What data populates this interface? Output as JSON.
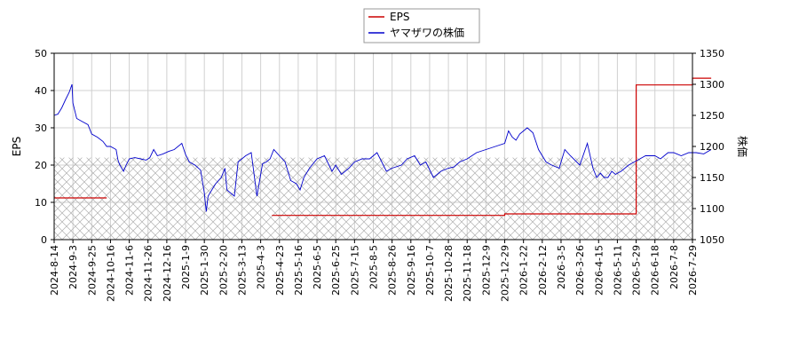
{
  "chart_data": {
    "type": "line",
    "legend": {
      "placement": "top-center",
      "entries": [
        "EPS",
        "ヤマザワの株価"
      ]
    },
    "grid": true,
    "left_axis": {
      "label": "EPS",
      "ylim": [
        0,
        50
      ],
      "ticks": [
        "0",
        "10",
        "20",
        "30",
        "40",
        "50"
      ]
    },
    "right_axis": {
      "label": "株価",
      "ylim": [
        1050,
        1350
      ],
      "ticks": [
        "1050",
        "1100",
        "1150",
        "1200",
        "1250",
        "1300",
        "1350"
      ]
    },
    "x_ticks": [
      "2024-8-14",
      "2024-9-3",
      "2024-9-25",
      "2024-10-16",
      "2024-11-6",
      "2024-11-26",
      "2024-12-16",
      "2025-1-9",
      "2025-1-30",
      "2025-2-20",
      "2025-3-13",
      "2025-4-3",
      "2025-4-23",
      "2025-5-16",
      "2025-6-5",
      "2025-6-25",
      "2025-7-15",
      "2025-8-5",
      "2025-8-26",
      "2025-9-16",
      "2025-10-7",
      "2025-10-28",
      "2025-11-18",
      "2025-12-9",
      "2025-12-29",
      "2026-1-22",
      "2026-2-12",
      "2026-3-5",
      "2026-3-26",
      "2026-4-15",
      "2026-5-11",
      "2026-5-29",
      "2026-6-18",
      "2026-7-8",
      "2026-7-29"
    ],
    "hatch_band": {
      "from": 0,
      "to": 22,
      "axis": "left"
    },
    "series": [
      {
        "name": "EPS",
        "axis": "left",
        "color": "#cc0000",
        "step": true,
        "segments": [
          {
            "x": [
              0,
              2.8
            ],
            "y": [
              11.2,
              11.2
            ]
          },
          {
            "x": [
              11.6,
              24.0,
              24.0,
              31.0,
              31.0,
              34.0,
              34.0,
              35.0
            ],
            "y": [
              6.5,
              6.5,
              6.9,
              6.9,
              41.5,
              41.5,
              43.3,
              43.3
            ]
          }
        ]
      },
      {
        "name": "ヤマザワの株価",
        "axis": "right",
        "color": "#0000cc",
        "x": [
          0,
          0.2,
          0.4,
          0.6,
          0.8,
          0.95,
          1.0,
          1.2,
          1.5,
          1.8,
          2.0,
          2.3,
          2.6,
          2.8,
          3.0,
          3.3,
          3.4,
          3.5,
          3.7,
          3.8,
          4.0,
          4.3,
          4.6,
          4.9,
          5.1,
          5.3,
          5.5,
          5.8,
          6.1,
          6.4,
          6.8,
          7.0,
          7.2,
          7.5,
          7.8,
          8.0,
          8.1,
          8.2,
          8.4,
          8.6,
          8.9,
          9.1,
          9.2,
          9.4,
          9.6,
          9.8,
          10.2,
          10.5,
          10.8,
          11.1,
          11.3,
          11.5,
          11.7,
          12.0,
          12.3,
          12.6,
          12.9,
          13.1,
          13.3,
          13.6,
          14.0,
          14.4,
          14.8,
          15.0,
          15.3,
          15.7,
          16.0,
          16.4,
          16.8,
          17.2,
          17.7,
          18.0,
          18.5,
          18.8,
          19.2,
          19.5,
          19.8,
          20.2,
          20.6,
          21.0,
          21.3,
          21.6,
          22.0,
          22.5,
          23.0,
          23.5,
          24.0,
          24.2,
          24.4,
          24.6,
          24.8,
          25.0,
          25.2,
          25.5,
          25.8,
          26.2,
          26.5,
          26.9,
          27.0,
          27.2,
          27.5,
          28.0,
          28.4,
          28.7,
          28.9,
          29.1,
          29.3,
          29.5,
          29.7,
          29.9,
          30.2,
          30.6,
          30.9,
          31.2,
          31.5,
          32.0,
          32.3,
          32.7,
          33.0,
          33.4,
          33.8,
          34.2,
          34.6,
          35.0
        ],
        "y": [
          1250,
          1252,
          1262,
          1275,
          1287,
          1300,
          1270,
          1245,
          1240,
          1235,
          1220,
          1215,
          1208,
          1200,
          1200,
          1195,
          1178,
          1170,
          1160,
          1168,
          1180,
          1182,
          1180,
          1178,
          1182,
          1195,
          1185,
          1188,
          1192,
          1195,
          1205,
          1187,
          1175,
          1170,
          1162,
          1125,
          1095,
          1120,
          1130,
          1140,
          1150,
          1165,
          1130,
          1125,
          1120,
          1175,
          1185,
          1190,
          1120,
          1172,
          1175,
          1180,
          1195,
          1185,
          1175,
          1145,
          1140,
          1130,
          1150,
          1165,
          1180,
          1185,
          1160,
          1170,
          1155,
          1165,
          1175,
          1180,
          1180,
          1190,
          1160,
          1165,
          1170,
          1180,
          1185,
          1170,
          1175,
          1150,
          1160,
          1165,
          1167,
          1175,
          1180,
          1190,
          1195,
          1200,
          1205,
          1225,
          1215,
          1210,
          1220,
          1225,
          1230,
          1222,
          1195,
          1175,
          1170,
          1165,
          1175,
          1195,
          1185,
          1170,
          1205,
          1165,
          1150,
          1157,
          1150,
          1150,
          1160,
          1155,
          1160,
          1170,
          1175,
          1180,
          1185,
          1185,
          1180,
          1190,
          1190,
          1185,
          1190,
          1190,
          1188,
          1195
        ]
      }
    ]
  }
}
